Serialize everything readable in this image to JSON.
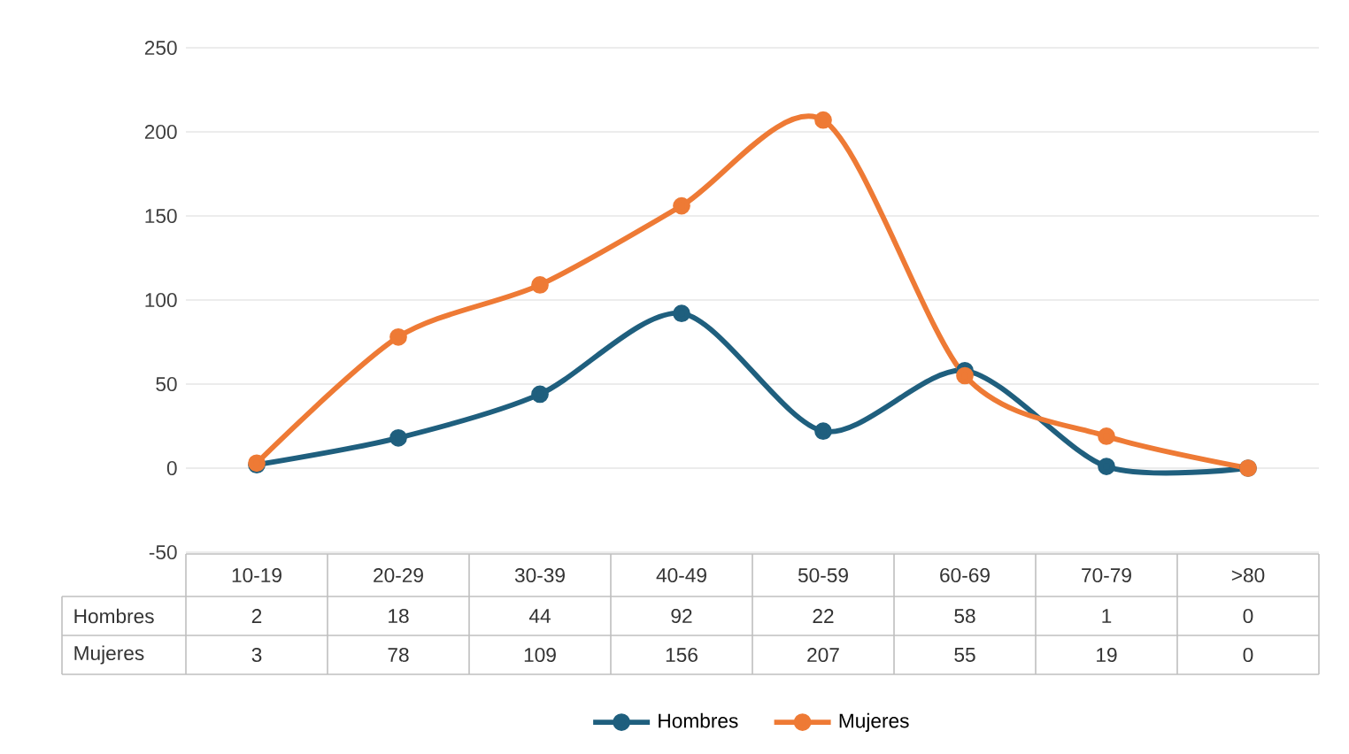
{
  "chart_data": {
    "type": "line",
    "categories": [
      "10-19",
      "20-29",
      "30-39",
      "40-49",
      "50-59",
      "60-69",
      "70-79",
      ">80"
    ],
    "series": [
      {
        "name": "Hombres",
        "color": "#1f5f7e",
        "values": [
          2,
          18,
          44,
          92,
          22,
          58,
          1,
          0
        ]
      },
      {
        "name": "Mujeres",
        "color": "#ee7a35",
        "values": [
          3,
          78,
          109,
          156,
          207,
          55,
          19,
          0
        ]
      }
    ],
    "ylim": [
      -50,
      250
    ],
    "yticks": [
      -50,
      0,
      50,
      100,
      150,
      200,
      250
    ],
    "grid": "y",
    "legend": "bottom",
    "marker": "circle",
    "line_style": "solid",
    "data_labels": true
  }
}
